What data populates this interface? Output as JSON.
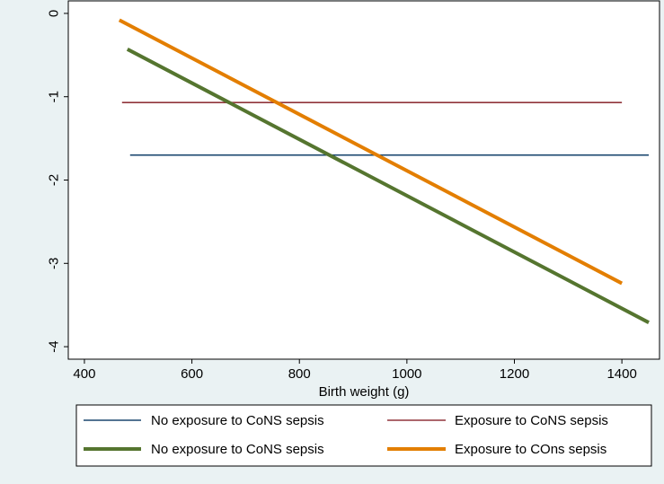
{
  "chart_data": {
    "type": "line",
    "xlabel": "Birth weight (g)",
    "ylabel": "",
    "xlim": [
      370,
      1470
    ],
    "ylim": [
      -4.15,
      0.15
    ],
    "x_ticks": [
      400,
      600,
      800,
      1000,
      1200,
      1400
    ],
    "y_ticks": [
      0,
      -1,
      -2,
      -3,
      -4
    ],
    "grid": false,
    "legend_position": "bottom",
    "legend_columns": 2,
    "series": [
      {
        "name": "No exposure to CoNS sepsis",
        "color": "#1a476f",
        "weight": "thin",
        "x": [
          485,
          1450
        ],
        "y": [
          -1.7,
          -1.7
        ]
      },
      {
        "name": "Exposure to CoNS sepsis",
        "color": "#90353b",
        "weight": "thin",
        "x": [
          470,
          1400
        ],
        "y": [
          -1.07,
          -1.07
        ]
      },
      {
        "name": "No exposure to CoNS sepsis",
        "color": "#55752f",
        "weight": "thick",
        "x": [
          480,
          1450
        ],
        "y": [
          -0.43,
          -3.71
        ]
      },
      {
        "name": "Exposure to COns sepsis",
        "color": "#e37e00",
        "weight": "thick",
        "x": [
          465,
          1400
        ],
        "y": [
          -0.08,
          -3.24
        ]
      }
    ]
  }
}
